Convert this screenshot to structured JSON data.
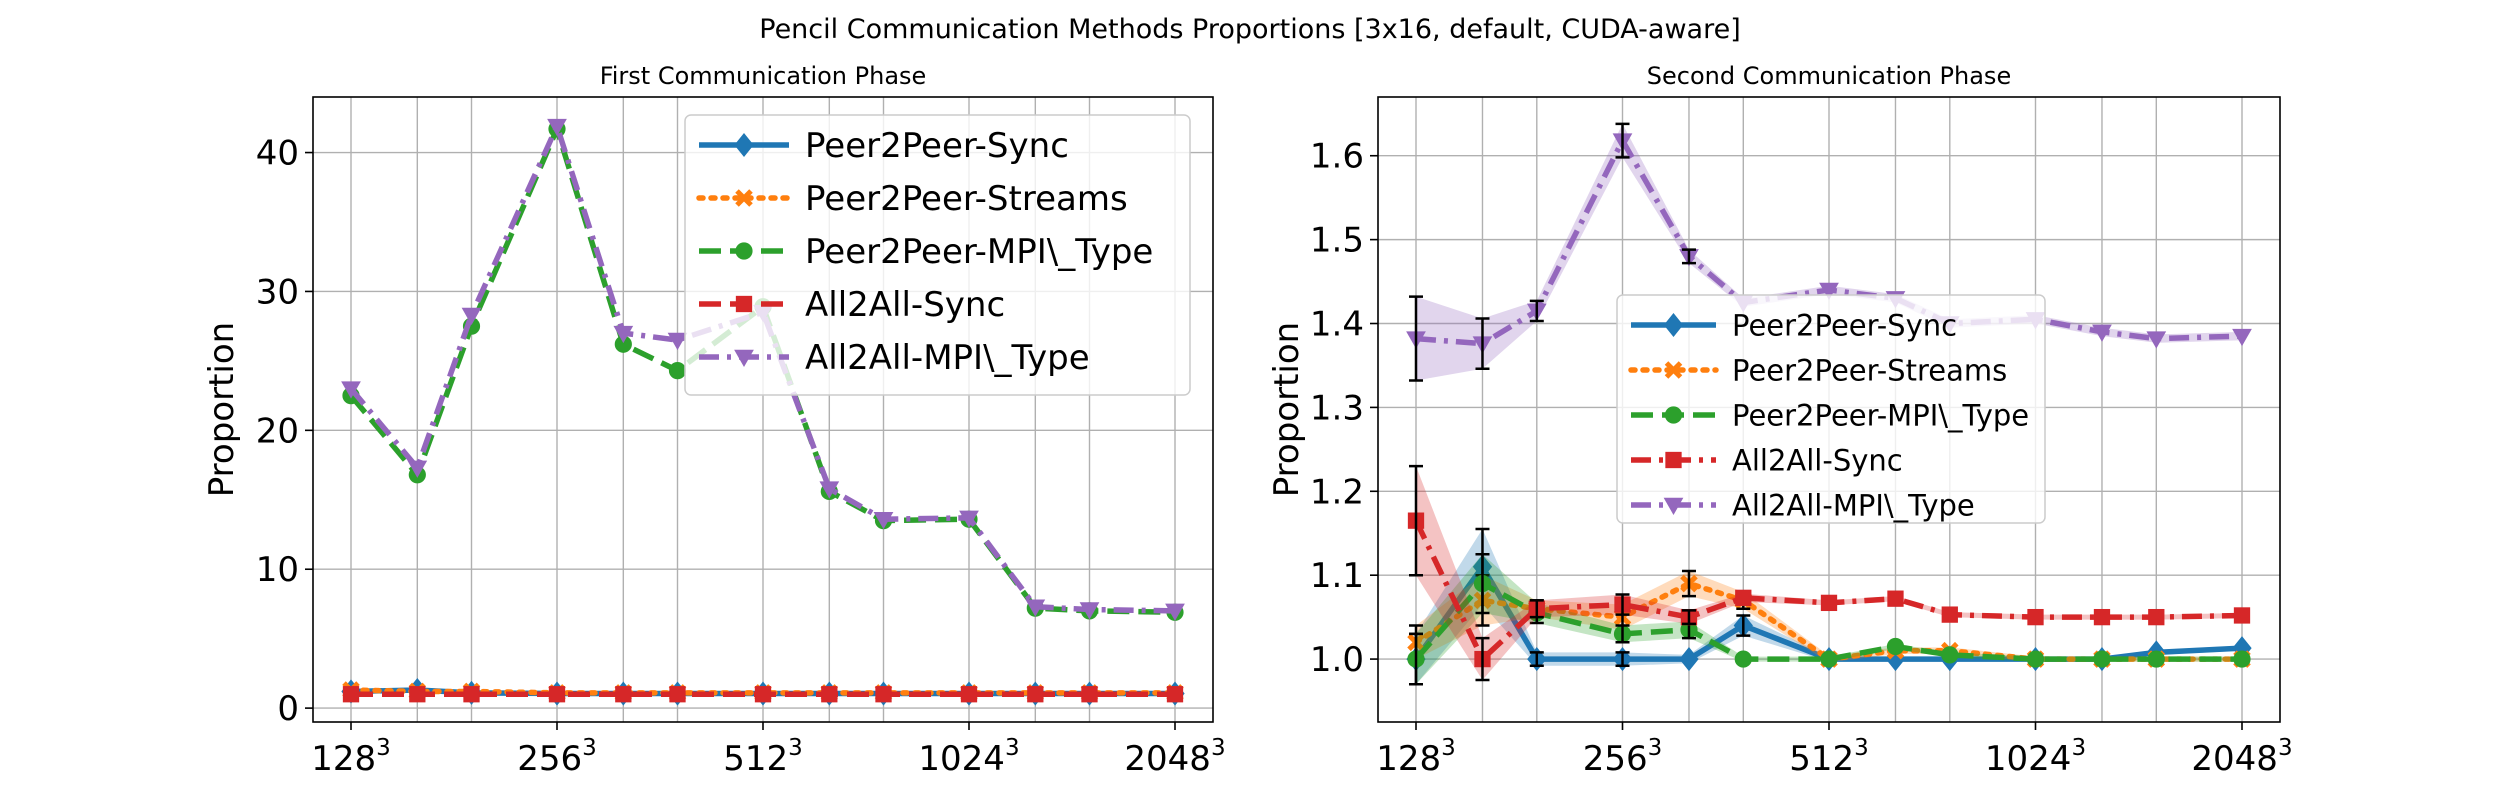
{
  "figure": {
    "suptitle": "Pencil Communication Methods Proportions [3x16, default, CUDA-aware]"
  },
  "colors": {
    "Peer2Peer-Sync": "#1f77b4",
    "Peer2Peer-Streams": "#ff7f0e",
    "Peer2Peer-MPI\\_Type": "#2ca02c",
    "All2All-Sync": "#d62728",
    "All2All-MPI\\_Type": "#9467bd"
  },
  "chart_data": [
    {
      "type": "line",
      "title": "First Communication Phase",
      "ylabel": "Proportion",
      "xlabel": "",
      "x_scale": "log2",
      "x": [
        128,
        160,
        192,
        256,
        320,
        384,
        512,
        640,
        768,
        1024,
        1280,
        1536,
        2048
      ],
      "x_ticks": [
        {
          "value": 128,
          "base": "128",
          "exp": "3"
        },
        {
          "value": 256,
          "base": "256",
          "exp": "3"
        },
        {
          "value": 512,
          "base": "512",
          "exp": "3"
        },
        {
          "value": 1024,
          "base": "1024",
          "exp": "3"
        },
        {
          "value": 2048,
          "base": "2048",
          "exp": "3"
        }
      ],
      "ylim": [
        -1,
        44
      ],
      "y_ticks": [
        "0",
        "10",
        "20",
        "30",
        "40"
      ],
      "grid": true,
      "legend_position": "top-right",
      "series": [
        {
          "name": "Peer2Peer-Sync",
          "marker": "diamond",
          "dash": "solid",
          "values": [
            1.2,
            1.3,
            1.1,
            1.05,
            1.05,
            1.05,
            1.05,
            1.05,
            1.05,
            1.05,
            1.05,
            1.05,
            1.05
          ]
        },
        {
          "name": "Peer2Peer-Streams",
          "marker": "x",
          "dash": "dotted",
          "values": [
            1.3,
            1.2,
            1.2,
            1.1,
            1.1,
            1.1,
            1.1,
            1.1,
            1.1,
            1.1,
            1.1,
            1.1,
            1.1
          ]
        },
        {
          "name": "Peer2Peer-MPI\\_Type",
          "marker": "circle",
          "dash": "dashed",
          "values": [
            22.5,
            16.8,
            27.5,
            41.7,
            26.2,
            24.3,
            28.9,
            15.6,
            13.5,
            13.6,
            7.2,
            7.0,
            6.9
          ]
        },
        {
          "name": "All2All-Sync",
          "marker": "square",
          "dash": "dashed",
          "values": [
            1.0,
            1.0,
            1.0,
            1.0,
            1.0,
            1.0,
            1.0,
            1.0,
            1.0,
            1.0,
            1.0,
            1.0,
            1.0
          ]
        },
        {
          "name": "All2All-MPI\\_Type",
          "marker": "triangle-down",
          "dash": "dashdot",
          "values": [
            23.0,
            17.3,
            28.3,
            41.9,
            27.0,
            26.5,
            28.5,
            15.8,
            13.6,
            13.7,
            7.3,
            7.1,
            7.0
          ]
        }
      ]
    },
    {
      "type": "line",
      "title": "Second Communication Phase",
      "ylabel": "Proportion",
      "xlabel": "",
      "x_scale": "log2",
      "x": [
        128,
        160,
        192,
        256,
        320,
        384,
        512,
        640,
        768,
        1024,
        1280,
        1536,
        2048
      ],
      "x_ticks": [
        {
          "value": 128,
          "base": "128",
          "exp": "3"
        },
        {
          "value": 256,
          "base": "256",
          "exp": "3"
        },
        {
          "value": 512,
          "base": "512",
          "exp": "3"
        },
        {
          "value": 1024,
          "base": "1024",
          "exp": "3"
        },
        {
          "value": 2048,
          "base": "2048",
          "exp": "3"
        }
      ],
      "ylim": [
        0.925,
        1.67
      ],
      "y_ticks": [
        "1.0",
        "1.1",
        "1.2",
        "1.3",
        "1.4",
        "1.5",
        "1.6"
      ],
      "grid": true,
      "legend_position": "center-right",
      "series": [
        {
          "name": "Peer2Peer-Sync",
          "marker": "diamond",
          "dash": "solid",
          "values": [
            1.0,
            1.11,
            1.0,
            1.0,
            1.0,
            1.04,
            1.0,
            1.0,
            1.0,
            1.0,
            1.0,
            1.008,
            1.013
          ],
          "err": [
            0.03,
            0.045,
            0.008,
            0.008,
            0.005,
            0.012,
            0.003,
            0.003,
            0.003,
            0.003,
            0.003,
            0.003,
            0.003
          ]
        },
        {
          "name": "Peer2Peer-Streams",
          "marker": "x",
          "dash": "dotted",
          "values": [
            1.02,
            1.07,
            1.06,
            1.05,
            1.09,
            1.07,
            1.0,
            1.01,
            1.01,
            1.0,
            1.0,
            1.0,
            1.0
          ],
          "err": [
            0.02,
            0.03,
            0.01,
            0.015,
            0.015,
            0.01,
            0.004,
            0.004,
            0.004,
            0.003,
            0.003,
            0.003,
            0.003
          ]
        },
        {
          "name": "Peer2Peer-MPI\\_Type",
          "marker": "circle",
          "dash": "dashed",
          "values": [
            1.0,
            1.09,
            1.055,
            1.03,
            1.035,
            1.0,
            1.0,
            1.015,
            1.005,
            1.0,
            1.0,
            1.0,
            1.0
          ],
          "err": [
            0.03,
            0.035,
            0.012,
            0.01,
            0.01,
            0.003,
            0.003,
            0.003,
            0.003,
            0.003,
            0.003,
            0.003,
            0.003
          ]
        },
        {
          "name": "All2All-Sync",
          "marker": "square",
          "dash": "dashdot",
          "values": [
            1.165,
            1.0,
            1.06,
            1.065,
            1.05,
            1.073,
            1.067,
            1.072,
            1.053,
            1.05,
            1.05,
            1.05,
            1.052
          ],
          "err": [
            0.065,
            0.025,
            0.01,
            0.012,
            0.008,
            0.005,
            0.003,
            0.003,
            0.003,
            0.003,
            0.003,
            0.003,
            0.003
          ]
        },
        {
          "name": "All2All-MPI\\_Type",
          "marker": "triangle-down",
          "dash": "dashdot",
          "values": [
            1.382,
            1.376,
            1.415,
            1.618,
            1.48,
            1.425,
            1.44,
            1.43,
            1.4,
            1.405,
            1.39,
            1.382,
            1.385
          ],
          "err": [
            0.05,
            0.03,
            0.012,
            0.02,
            0.008,
            0.005,
            0.005,
            0.005,
            0.005,
            0.005,
            0.005,
            0.005,
            0.005
          ]
        }
      ]
    }
  ]
}
